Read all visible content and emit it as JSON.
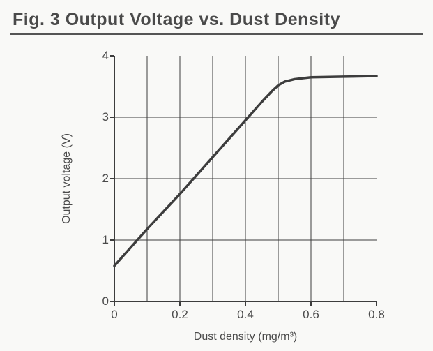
{
  "figure": {
    "title": "Fig. 3  Output Voltage vs. Dust Density",
    "type": "line",
    "xlabel": "Dust density (mg/m³)",
    "ylabel": "Output voltage (V)",
    "xlim": [
      0,
      0.8
    ],
    "ylim": [
      0,
      4
    ],
    "xtick_step": 0.1,
    "ytick_step": 1,
    "x_tick_labels": [
      "0",
      "0.2",
      "0.4",
      "0.6",
      "0.8"
    ],
    "x_tick_positions": [
      0,
      0.2,
      0.4,
      0.6,
      0.8
    ],
    "y_tick_labels": [
      "0",
      "1",
      "2",
      "3",
      "4"
    ],
    "y_tick_positions": [
      0,
      1,
      2,
      3,
      4
    ],
    "series": {
      "points": [
        [
          0.0,
          0.58
        ],
        [
          0.1,
          1.18
        ],
        [
          0.2,
          1.75
        ],
        [
          0.3,
          2.35
        ],
        [
          0.4,
          2.95
        ],
        [
          0.45,
          3.25
        ],
        [
          0.48,
          3.42
        ],
        [
          0.5,
          3.52
        ],
        [
          0.52,
          3.58
        ],
        [
          0.55,
          3.62
        ],
        [
          0.6,
          3.65
        ],
        [
          0.7,
          3.66
        ],
        [
          0.8,
          3.67
        ]
      ],
      "line_color": "#3d3d3d",
      "line_width": 3.5
    },
    "background_color": "#f9f9f7",
    "grid_color": "#3d3d3d",
    "grid_line_width": 1,
    "axis_color": "#3d3d3d",
    "axis_line_width": 2,
    "tick_len": 6,
    "tick_fontsize": 17,
    "label_fontsize": 16,
    "title_fontsize": 25
  }
}
